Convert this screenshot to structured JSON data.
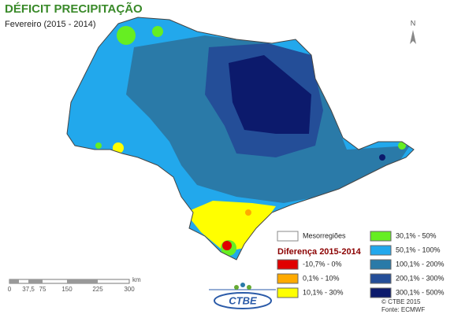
{
  "header": {
    "title": "DÉFICIT PRECIPITAÇÃO",
    "subtitle": "Fevereiro (2015 - 2014)"
  },
  "north": "N",
  "legend": {
    "boundary": "Mesorregiões",
    "title": "Diferença 2015-2014",
    "classes": [
      {
        "label": "-10,7% - 0%",
        "color": "#e00000"
      },
      {
        "label": "0,1% - 10%",
        "color": "#ffaa00"
      },
      {
        "label": "10,1% - 30%",
        "color": "#ffff00"
      },
      {
        "label": "30,1% - 50%",
        "color": "#66ee22"
      },
      {
        "label": "50,1% - 100%",
        "color": "#22a8ec"
      },
      {
        "label": "100,1% - 200%",
        "color": "#2a7aa8"
      },
      {
        "label": "200,1% - 300%",
        "color": "#244e98"
      },
      {
        "label": "300,1% - 500%",
        "color": "#0c1a6c"
      }
    ]
  },
  "scale": {
    "labels": [
      "0",
      "37,5",
      "75",
      "150",
      "225",
      "300"
    ],
    "unit": "km"
  },
  "logo": "CTBE",
  "credits": [
    "© CTBE 2015",
    "Fonte: ECMWF"
  ]
}
